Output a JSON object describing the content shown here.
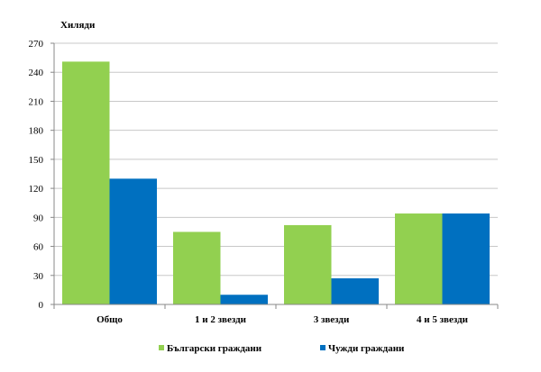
{
  "chart_data": {
    "type": "bar",
    "ylabel": "Хиляди",
    "categories": [
      "Общо",
      "1 и 2 звезди",
      "3 звезди",
      "4 и 5 звезди"
    ],
    "series": [
      {
        "name": "Български граждани",
        "color": "#92d050",
        "values": [
          251,
          75,
          82,
          94
        ]
      },
      {
        "name": "Чужди граждани",
        "color": "#0070c0",
        "values": [
          130,
          10,
          27,
          94
        ]
      }
    ],
    "ylim": [
      0,
      270
    ],
    "yticks": [
      0,
      30,
      60,
      90,
      120,
      150,
      180,
      210,
      240,
      270
    ],
    "grid": true,
    "legend": "bottom"
  }
}
